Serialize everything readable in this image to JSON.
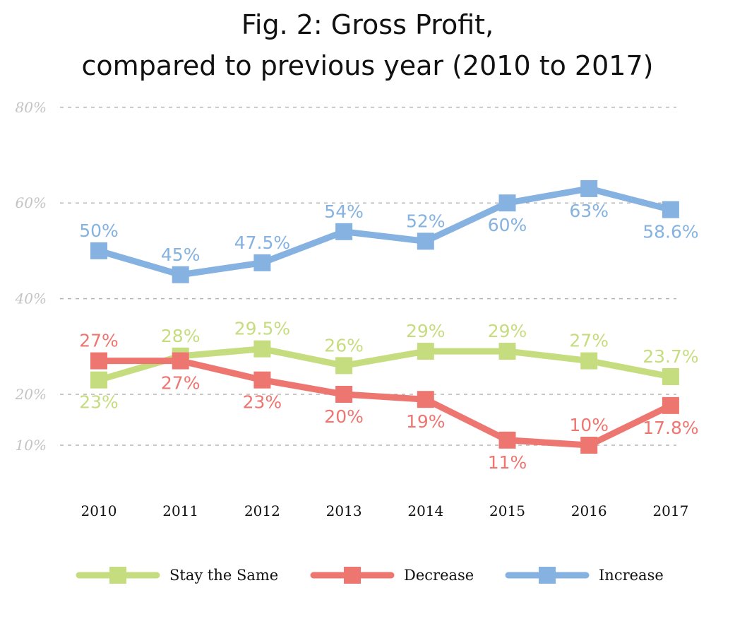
{
  "chart_data": {
    "type": "line",
    "title": "Fig. 2: Gross Profit,",
    "subtitle": "compared to previous year (2010 to 2017)",
    "categories": [
      "2010",
      "2011",
      "2012",
      "2013",
      "2014",
      "2015",
      "2016",
      "2017"
    ],
    "yticks": [
      {
        "value": 80,
        "label": "80%"
      },
      {
        "value": 60,
        "label": "60%"
      },
      {
        "value": 40,
        "label": "40%"
      },
      {
        "value": 20,
        "label": "20%"
      },
      {
        "value": 10,
        "label": "10%"
      }
    ],
    "ylim": [
      0,
      80
    ],
    "grid": true,
    "legend_position": "bottom",
    "series": [
      {
        "name": "Stay the Same",
        "color": "#c6dd7f",
        "values": [
          23,
          28,
          29.5,
          26,
          29,
          29,
          27,
          23.7
        ],
        "labels": [
          "23%",
          "28%",
          "29.5%",
          "26%",
          "29%",
          "29%",
          "27%",
          "23.7%"
        ],
        "label_pos": [
          "below",
          "above",
          "above",
          "above",
          "above",
          "above",
          "above",
          "above"
        ]
      },
      {
        "name": "Decrease",
        "color": "#ee7671",
        "values": [
          27,
          27,
          23,
          20,
          19,
          11,
          10,
          17.8
        ],
        "labels": [
          "27%",
          "27%",
          "23%",
          "20%",
          "19%",
          "11%",
          "10%",
          "17.8%"
        ],
        "label_pos": [
          "above",
          "below",
          "below",
          "below",
          "below",
          "below",
          "above",
          "below"
        ]
      },
      {
        "name": "Increase",
        "color": "#85b2e0",
        "values": [
          50,
          45,
          47.5,
          54,
          52,
          60,
          63,
          58.6
        ],
        "labels": [
          "50%",
          "45%",
          "47.5%",
          "54%",
          "52%",
          "60%",
          "63%",
          "58.6%"
        ],
        "label_pos": [
          "above",
          "above",
          "above",
          "above",
          "above",
          "below",
          "below",
          "below"
        ]
      }
    ]
  }
}
